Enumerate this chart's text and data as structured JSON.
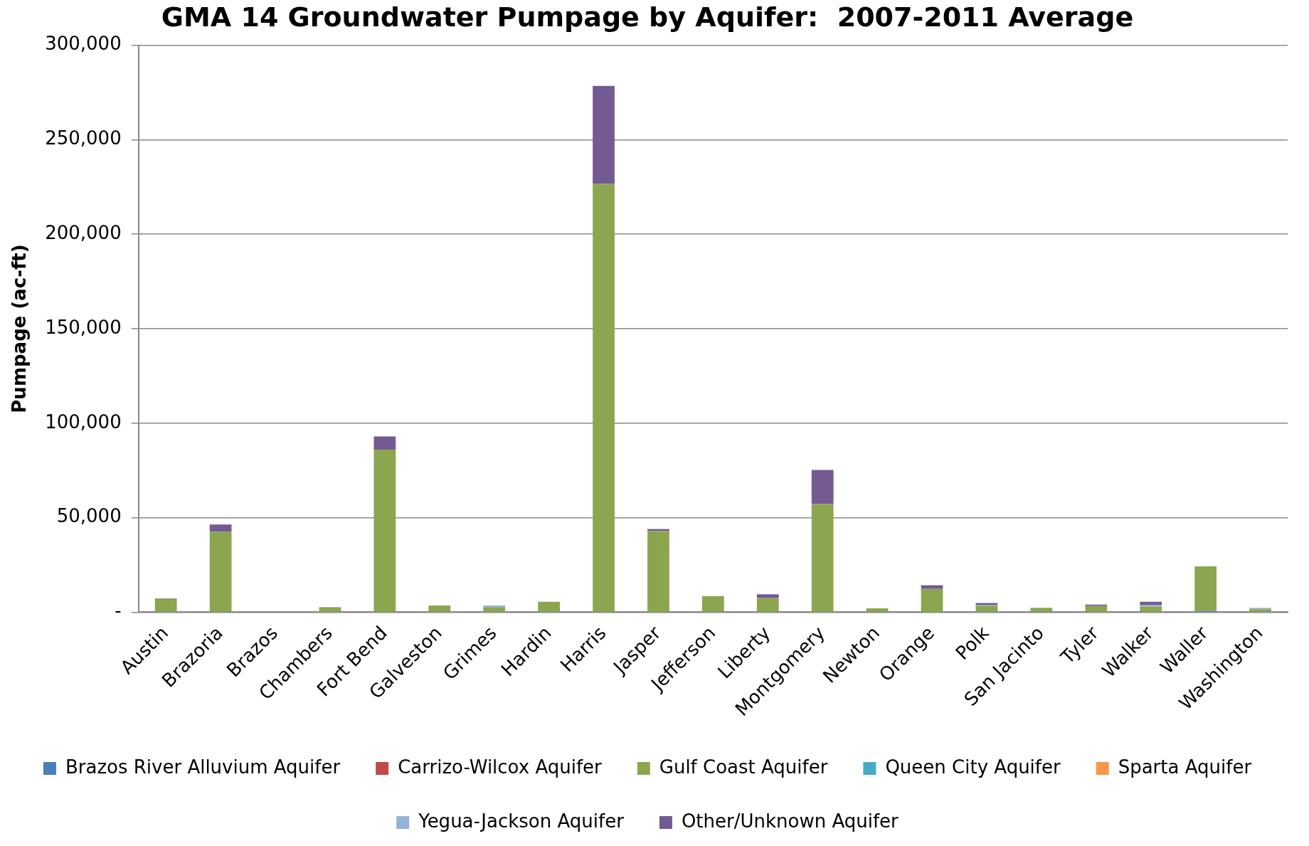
{
  "chart_data": {
    "type": "bar",
    "title": "GMA 14 Groundwater Pumpage by Aquifer:  2007-2011 Average",
    "ylabel": "Pumpage (ac-ft)",
    "categories": [
      "Austin",
      "Brazoria",
      "Brazos",
      "Chambers",
      "Fort Bend",
      "Galveston",
      "Grimes",
      "Hardin",
      "Harris",
      "Jasper",
      "Jefferson",
      "Liberty",
      "Montgomery",
      "Newton",
      "Orange",
      "Polk",
      "San Jacinto",
      "Tyler",
      "Walker",
      "Waller",
      "Washington"
    ],
    "stacked": true,
    "ylim": [
      0,
      300000
    ],
    "yticks": [
      {
        "value": 0,
        "label": "-"
      },
      {
        "value": 50000,
        "label": "50,000"
      },
      {
        "value": 100000,
        "label": "100,000"
      },
      {
        "value": 150000,
        "label": "150,000"
      },
      {
        "value": 200000,
        "label": "200,000"
      },
      {
        "value": 250000,
        "label": "250,000"
      },
      {
        "value": 300000,
        "label": "300,000"
      }
    ],
    "grid": "y",
    "legend": "bottom",
    "series": [
      {
        "name": "Brazos River Alluvium Aquifer",
        "color": "#4a7ebb",
        "values": [
          0,
          0,
          0,
          0,
          0,
          0,
          0,
          0,
          0,
          0,
          0,
          0,
          0,
          0,
          0,
          0,
          0,
          0,
          0,
          600,
          0
        ]
      },
      {
        "name": "Carrizo-Wilcox Aquifer",
        "color": "#be4b48",
        "values": [
          0,
          0,
          0,
          0,
          0,
          0,
          0,
          0,
          0,
          0,
          0,
          0,
          0,
          0,
          0,
          0,
          0,
          0,
          0,
          0,
          0
        ]
      },
      {
        "name": "Gulf Coast Aquifer",
        "color": "#8ba64f",
        "values": [
          7000,
          42600,
          0,
          2400,
          86000,
          3500,
          2700,
          5500,
          226700,
          43000,
          8500,
          7500,
          57300,
          2000,
          12300,
          3400,
          2300,
          3300,
          3000,
          23600,
          1600
        ]
      },
      {
        "name": "Queen City Aquifer",
        "color": "#46aac5",
        "values": [
          0,
          0,
          0,
          0,
          0,
          0,
          0,
          0,
          0,
          0,
          0,
          0,
          0,
          0,
          0,
          0,
          0,
          0,
          0,
          0,
          0
        ]
      },
      {
        "name": "Sparta Aquifer",
        "color": "#f79646",
        "values": [
          0,
          0,
          0,
          0,
          0,
          0,
          0,
          0,
          0,
          0,
          0,
          0,
          0,
          0,
          0,
          0,
          0,
          0,
          0,
          0,
          0
        ]
      },
      {
        "name": "Yegua-Jackson Aquifer",
        "color": "#95b3d7",
        "values": [
          0,
          0,
          0,
          0,
          0,
          0,
          800,
          0,
          0,
          0,
          0,
          0,
          0,
          0,
          0,
          500,
          0,
          0,
          700,
          0,
          700
        ]
      },
      {
        "name": "Other/Unknown Aquifer",
        "color": "#745a93",
        "values": [
          300,
          3800,
          0,
          200,
          7000,
          0,
          null,
          0,
          51800,
          1000,
          0,
          2000,
          18000,
          0,
          2000,
          1000,
          0,
          700,
          1800,
          0,
          0
        ]
      }
    ]
  }
}
